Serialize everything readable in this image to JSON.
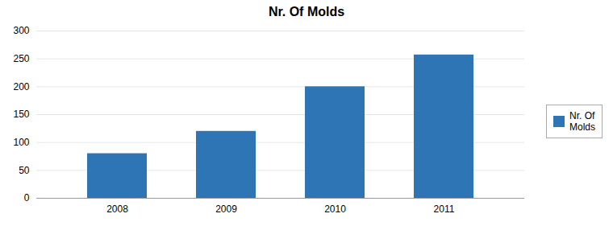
{
  "chart_data": {
    "type": "bar",
    "title": "Nr. Of Molds",
    "categories": [
      "2008",
      "2009",
      "2010",
      "2011"
    ],
    "series": [
      {
        "name": "Nr. Of\nMolds",
        "color": "#2E75B6",
        "values": [
          80,
          120,
          200,
          257
        ]
      }
    ],
    "ylim": [
      0,
      300
    ],
    "yticks": [
      0,
      50,
      100,
      150,
      200,
      250,
      300
    ],
    "grid": true,
    "legend": "right"
  }
}
